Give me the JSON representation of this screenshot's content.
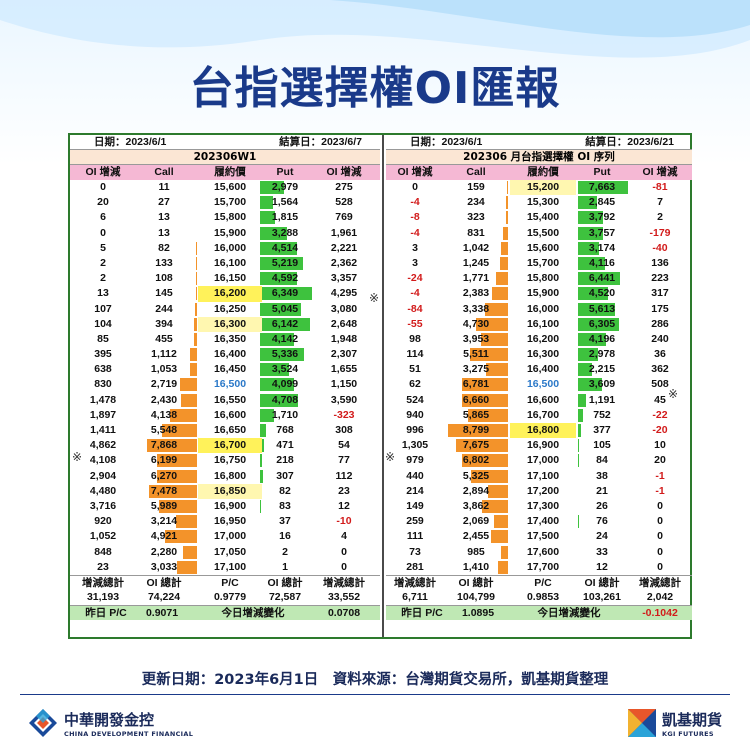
{
  "title": "台指選擇權OI匯報",
  "left": {
    "date": "日期：2023/6/1",
    "settle": "結算日：2023/6/7",
    "series": "202306W1",
    "headers": [
      "OI 增減",
      "Call",
      "履約價",
      "Put",
      "OI 增減"
    ],
    "rows": [
      [
        "0",
        "11",
        "15,600",
        "2,979",
        "275"
      ],
      [
        "20",
        "27",
        "15,700",
        "1,564",
        "528"
      ],
      [
        "6",
        "13",
        "15,800",
        "1,815",
        "769"
      ],
      [
        "0",
        "13",
        "15,900",
        "3,288",
        "1,961"
      ],
      [
        "5",
        "82",
        "16,000",
        "4,514",
        "2,221"
      ],
      [
        "2",
        "133",
        "16,100",
        "5,219",
        "2,362"
      ],
      [
        "2",
        "108",
        "16,150",
        "4,592",
        "3,357"
      ],
      [
        "13",
        "145",
        "16,200",
        "6,349",
        "4,295"
      ],
      [
        "107",
        "244",
        "16,250",
        "5,045",
        "3,080"
      ],
      [
        "104",
        "394",
        "16,300",
        "6,142",
        "2,648"
      ],
      [
        "85",
        "455",
        "16,350",
        "4,142",
        "1,948"
      ],
      [
        "395",
        "1,112",
        "16,400",
        "5,336",
        "2,307"
      ],
      [
        "638",
        "1,053",
        "16,450",
        "3,524",
        "1,655"
      ],
      [
        "830",
        "2,719",
        "16,500",
        "4,099",
        "1,150"
      ],
      [
        "1,478",
        "2,430",
        "16,550",
        "4,708",
        "3,590"
      ],
      [
        "1,897",
        "4,138",
        "16,600",
        "1,710",
        "-323"
      ],
      [
        "1,411",
        "5,548",
        "16,650",
        "768",
        "308"
      ],
      [
        "4,862",
        "7,868",
        "16,700",
        "471",
        "54"
      ],
      [
        "4,108",
        "6,199",
        "16,750",
        "218",
        "77"
      ],
      [
        "2,904",
        "6,270",
        "16,800",
        "307",
        "112"
      ],
      [
        "4,480",
        "7,478",
        "16,850",
        "82",
        "23"
      ],
      [
        "3,716",
        "5,989",
        "16,900",
        "83",
        "12"
      ],
      [
        "920",
        "3,214",
        "16,950",
        "37",
        "-10"
      ],
      [
        "1,052",
        "4,921",
        "17,000",
        "16",
        "4"
      ],
      [
        "848",
        "2,280",
        "17,050",
        "2",
        "0"
      ],
      [
        "23",
        "3,033",
        "17,100",
        "1",
        "0"
      ]
    ],
    "call_bar": [
      0,
      0,
      0,
      0,
      0.01,
      0.017,
      0.014,
      0.018,
      0.03,
      0.05,
      0.058,
      0.14,
      0.13,
      0.34,
      0.31,
      0.53,
      0.7,
      1.0,
      0.79,
      0.8,
      0.95,
      0.76,
      0.41,
      0.63,
      0.29,
      0.39
    ],
    "put_bar": [
      0.47,
      0.25,
      0.29,
      0.52,
      0.71,
      0.82,
      0.72,
      1.0,
      0.79,
      0.97,
      0.65,
      0.84,
      0.56,
      0.65,
      0.74,
      0.27,
      0.12,
      0.07,
      0.03,
      0.05,
      0.01,
      0.01,
      0.006,
      0.003,
      0,
      0
    ],
    "sum_headers": [
      "增減總計",
      "OI 總計",
      "P/C",
      "OI 總計",
      "增減總計"
    ],
    "sums": [
      "31,193",
      "74,224",
      "0.9779",
      "72,587",
      "33,552"
    ],
    "prev_pc_label": "昨日 P/C",
    "prev_pc": "0.9071",
    "change_label": "今日增減變化",
    "change": "0.0708"
  },
  "right": {
    "date": "日期：2023/6/1",
    "settle": "結算日：2023/6/21",
    "series": "202306 月台指選擇權 OI 序列",
    "headers": [
      "OI 增減",
      "Call",
      "履約價",
      "Put",
      "OI 增減"
    ],
    "rows": [
      [
        "0",
        "159",
        "15,200",
        "7,663",
        "-81"
      ],
      [
        "-4",
        "234",
        "15,300",
        "2,845",
        "7"
      ],
      [
        "-8",
        "323",
        "15,400",
        "3,792",
        "2"
      ],
      [
        "-4",
        "831",
        "15,500",
        "3,757",
        "-179"
      ],
      [
        "3",
        "1,042",
        "15,600",
        "3,174",
        "-40"
      ],
      [
        "3",
        "1,245",
        "15,700",
        "4,116",
        "136"
      ],
      [
        "-24",
        "1,771",
        "15,800",
        "6,441",
        "223"
      ],
      [
        "-4",
        "2,383",
        "15,900",
        "4,520",
        "317"
      ],
      [
        "-84",
        "3,338",
        "16,000",
        "5,613",
        "175"
      ],
      [
        "-55",
        "4,730",
        "16,100",
        "6,305",
        "286"
      ],
      [
        "98",
        "3,953",
        "16,200",
        "4,196",
        "240"
      ],
      [
        "114",
        "5,511",
        "16,300",
        "2,978",
        "36"
      ],
      [
        "51",
        "3,275",
        "16,400",
        "2,215",
        "362"
      ],
      [
        "62",
        "6,781",
        "16,500",
        "3,609",
        "508"
      ],
      [
        "524",
        "6,660",
        "16,600",
        "1,191",
        "45"
      ],
      [
        "940",
        "5,865",
        "16,700",
        "752",
        "-22"
      ],
      [
        "996",
        "8,799",
        "16,800",
        "377",
        "-20"
      ],
      [
        "1,305",
        "7,675",
        "16,900",
        "105",
        "10"
      ],
      [
        "979",
        "6,802",
        "17,000",
        "84",
        "20"
      ],
      [
        "440",
        "5,325",
        "17,100",
        "38",
        "-1"
      ],
      [
        "214",
        "2,894",
        "17,200",
        "21",
        "-1"
      ],
      [
        "149",
        "3,862",
        "17,300",
        "26",
        "0"
      ],
      [
        "259",
        "2,069",
        "17,400",
        "76",
        "0"
      ],
      [
        "111",
        "2,455",
        "17,500",
        "24",
        "0"
      ],
      [
        "73",
        "985",
        "17,600",
        "33",
        "0"
      ],
      [
        "281",
        "1,410",
        "17,700",
        "12",
        "0"
      ]
    ],
    "call_bar": [
      0.02,
      0.03,
      0.04,
      0.09,
      0.12,
      0.14,
      0.2,
      0.27,
      0.38,
      0.54,
      0.45,
      0.63,
      0.37,
      0.77,
      0.76,
      0.67,
      1.0,
      0.87,
      0.77,
      0.61,
      0.33,
      0.44,
      0.24,
      0.28,
      0.11,
      0.16
    ],
    "put_bar": [
      1.0,
      0.37,
      0.49,
      0.49,
      0.41,
      0.54,
      0.84,
      0.59,
      0.73,
      0.82,
      0.55,
      0.39,
      0.29,
      0.47,
      0.16,
      0.1,
      0.05,
      0.01,
      0.01,
      0,
      0,
      0,
      0.01,
      0,
      0,
      0
    ],
    "sum_headers": [
      "增減總計",
      "OI 總計",
      "P/C",
      "OI 總計",
      "增減總計"
    ],
    "sums": [
      "6,711",
      "104,799",
      "0.9853",
      "103,261",
      "2,042"
    ],
    "prev_pc_label": "昨日 P/C",
    "prev_pc": "1.0895",
    "change_label": "今日增減變化",
    "change": "-0.1042"
  },
  "mark": "※",
  "colors": {
    "put_bar": "#3ec23e",
    "call_bar": "#f3932a",
    "highlight": "#fff25a",
    "atm": "#2a78c8",
    "negative": "#d21b1b",
    "header": "#f5b8d4",
    "footer": "#bfe8b4"
  },
  "footer": "更新日期：2023年6月1日　資料來源：台灣期貨交易所，凱基期貨整理",
  "logo_left": {
    "name": "中華開發金控",
    "sub": "CHINA DEVELOPMENT FINANCIAL"
  },
  "logo_right": {
    "name": "凱基期貨",
    "sub": "KGI FUTURES"
  }
}
